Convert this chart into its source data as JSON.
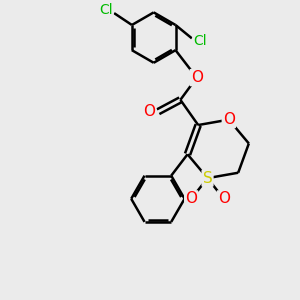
{
  "bg_color": "#ebebeb",
  "atom_colors": {
    "C": "#000000",
    "O": "#ff0000",
    "S": "#cccc00",
    "Cl": "#00bb00",
    "H": "#000000"
  },
  "bond_color": "#000000",
  "bond_width": 1.8,
  "figsize": [
    3.0,
    3.0
  ],
  "dpi": 100
}
